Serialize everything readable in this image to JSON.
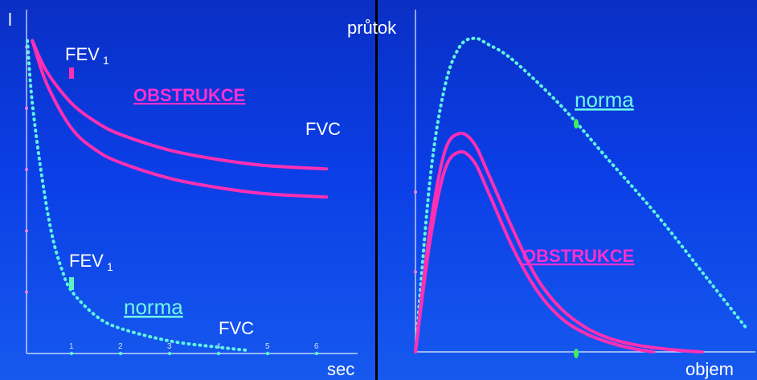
{
  "colors": {
    "obstruction": "#ff2fb4",
    "normal": "#5ff2e0",
    "axis": "#e8eefc",
    "marker_left": "#ff2fb4",
    "marker_left_normal": "#5ff2c0",
    "marker_right": "#3cf05a"
  },
  "chart_data": [
    {
      "type": "line",
      "ylabel": "l",
      "xlabel": "sec",
      "x_ticks": [
        "1",
        "2",
        "3",
        "4",
        "5",
        "6"
      ],
      "xlim": [
        0,
        7
      ],
      "ylim": [
        0,
        5.2
      ],
      "annotations": {
        "fev1_top": "FEV",
        "fev1_bottom": "FEV",
        "fev1_subscript": "1",
        "fvc_top": "FVC",
        "fvc_bottom": "FVC",
        "obstruction": "OBSTRUKCE",
        "normal": "norma"
      },
      "series": [
        {
          "style": "obstruction",
          "x": [
            0.2,
            0.5,
            1.0,
            1.5,
            2,
            3,
            4,
            5,
            6.2
          ],
          "y": [
            5.0,
            4.5,
            4.0,
            3.7,
            3.5,
            3.25,
            3.1,
            3.0,
            2.95
          ]
        },
        {
          "style": "obstruction",
          "x": [
            0.2,
            0.5,
            1.0,
            1.5,
            2,
            3,
            4,
            5,
            6.2
          ],
          "y": [
            5.0,
            4.3,
            3.6,
            3.25,
            3.05,
            2.8,
            2.65,
            2.55,
            2.5
          ]
        },
        {
          "style": "normal",
          "x": [
            0.1,
            0.2,
            0.4,
            0.6,
            0.8,
            1.0,
            1.5,
            2,
            3,
            4,
            4.6
          ],
          "y": [
            5.0,
            4.0,
            2.8,
            1.9,
            1.35,
            1.0,
            0.6,
            0.4,
            0.2,
            0.1,
            0.05
          ]
        }
      ]
    },
    {
      "type": "line",
      "ylabel": "průtok",
      "xlabel": "objem",
      "xlim": [
        0,
        7
      ],
      "ylim": [
        0,
        5.2
      ],
      "annotations": {
        "obstruction": "OBSTRUKCE",
        "normal": "norma"
      },
      "series": [
        {
          "style": "normal",
          "x": [
            0,
            0.3,
            0.6,
            0.9,
            1.2,
            1.5,
            2.0,
            3.0,
            4.0,
            5.0,
            6.0,
            6.8
          ],
          "y": [
            0,
            2.8,
            4.3,
            4.95,
            5.1,
            5.0,
            4.75,
            4.0,
            3.1,
            2.2,
            1.2,
            0.4
          ]
        },
        {
          "style": "obstruction",
          "x": [
            0,
            0.3,
            0.6,
            0.9,
            1.2,
            1.5,
            2.0,
            2.5,
            3.0,
            3.5,
            4.0,
            4.5,
            4.9
          ],
          "y": [
            0,
            1.8,
            2.95,
            3.25,
            3.1,
            2.6,
            1.7,
            1.0,
            0.55,
            0.3,
            0.15,
            0.05,
            0
          ]
        },
        {
          "style": "obstruction",
          "x": [
            0,
            0.3,
            0.6,
            0.9,
            1.2,
            1.5,
            2.0,
            2.5,
            3.0,
            3.5,
            4.0,
            4.5,
            5.0,
            5.5,
            5.9
          ],
          "y": [
            0,
            2.0,
            3.25,
            3.55,
            3.4,
            2.9,
            2.0,
            1.2,
            0.7,
            0.4,
            0.22,
            0.12,
            0.06,
            0.02,
            0
          ]
        }
      ]
    }
  ]
}
